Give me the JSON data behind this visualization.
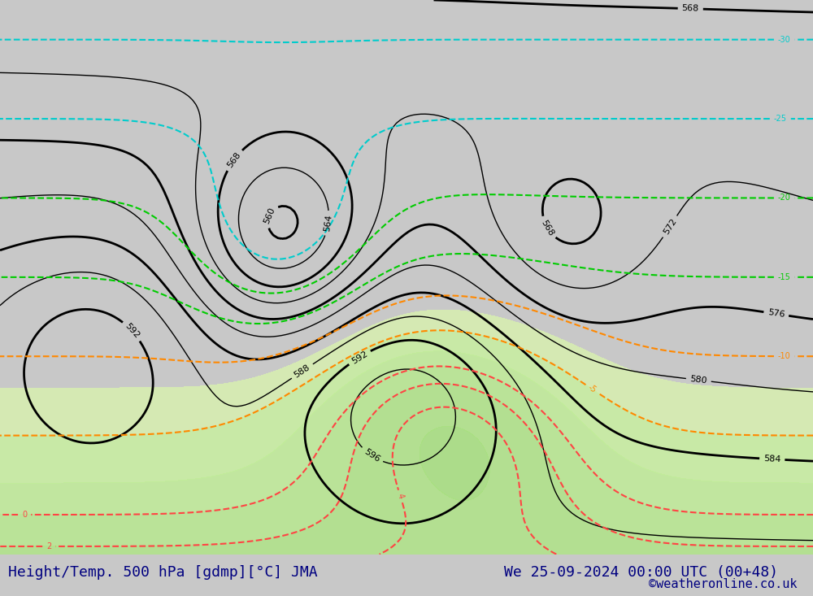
{
  "title_left": "Height/Temp. 500 hPa [gdmp][°C] JMA",
  "title_right": "We 25-09-2024 00:00 UTC (00+48)",
  "credit": "©weatheronline.co.uk",
  "background_color": "#e8e8e8",
  "map_background": "#d4d4d4",
  "land_color": "#d0d0d0",
  "green_fill_color": "#c8f0a0",
  "title_color": "#000080",
  "credit_color": "#000080",
  "title_fontsize": 13,
  "credit_fontsize": 11,
  "fig_width": 10.0,
  "fig_height": 7.33
}
